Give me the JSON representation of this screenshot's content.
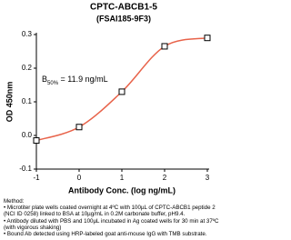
{
  "chart_data": {
    "type": "scatter",
    "title": "CPTC-ABCB1-5",
    "subtitle": "(FSAI185-9F3)",
    "x_label": "Antibody Conc. (log ng/mL)",
    "y_label": "OD 450nm",
    "annotation": {
      "symbol": "B",
      "subscript": "50%",
      "text": " = 11.9 ng/mL"
    },
    "x": [
      -1,
      0,
      1,
      2,
      3
    ],
    "values": [
      -0.015,
      0.025,
      0.13,
      0.265,
      0.29
    ],
    "color": "#e8634a",
    "marker_edge": "#000000",
    "xlim": [
      -1,
      3
    ],
    "xticks": [
      -1,
      0,
      1,
      2,
      3
    ],
    "ylim": [
      -0.1,
      0.3
    ],
    "yticks": [
      -0.1,
      {
        "value": 0,
        "label": "0.0"
      },
      0.1,
      0.2,
      0.3
    ]
  },
  "method": {
    "heading": "Method:",
    "items": [
      "• Microtiter plate wells coated overnight at 4ºC  with 100µL of CPTC-ABCB1 peptide 2 (NCI ID 0258) linked to BSA at 10µg/mL in 0.2M carbonate buffer, pH9.4.",
      "• Antibody diluted with PBS and 100µL incubated in Ag coated wells for 30 min at 37ºC (with vigorous shaking)",
      "• Bound Ab detected using HRP-labeled goat anti-mouse IgG with TMB substrate."
    ]
  }
}
